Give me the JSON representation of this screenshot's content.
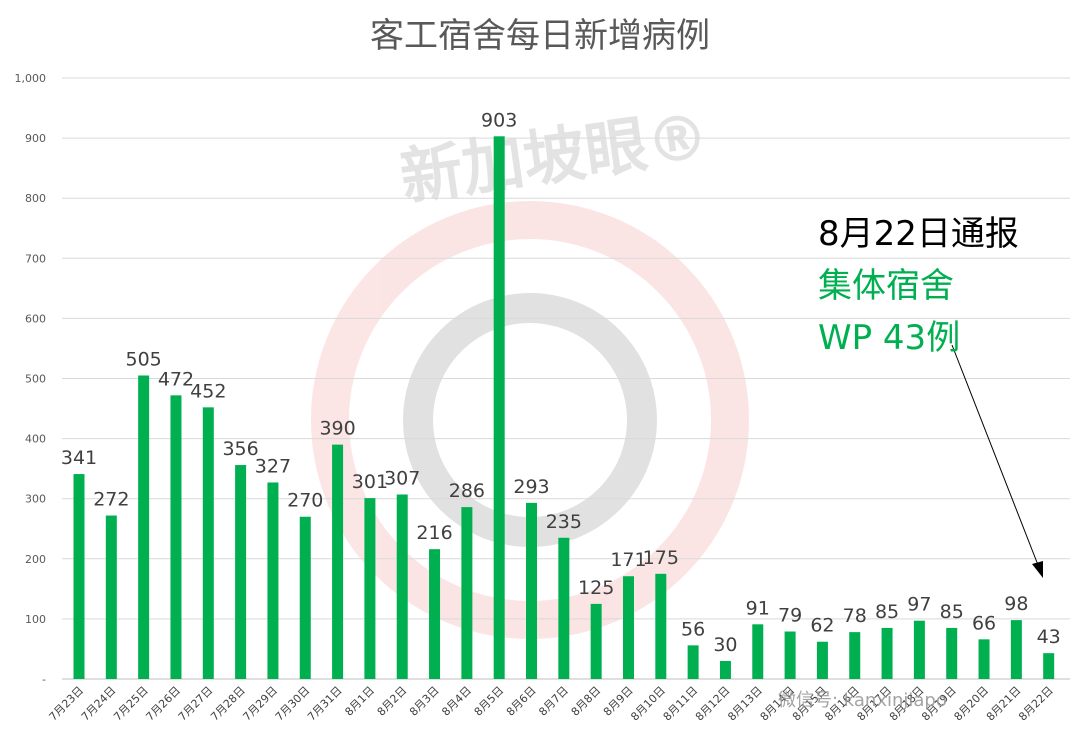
{
  "chart_data": {
    "type": "bar",
    "title": "客工宿舍每日新增病例",
    "xlabel": "",
    "ylabel": "",
    "ylim": [
      0,
      1000
    ],
    "yticks": [
      "-",
      "100",
      "200",
      "300",
      "400",
      "500",
      "600",
      "700",
      "800",
      "900",
      "1,000"
    ],
    "grid": true,
    "legend": "none",
    "categories": [
      "7月23日",
      "7月24日",
      "7月25日",
      "7月26日",
      "7月27日",
      "7月28日",
      "7月29日",
      "7月30日",
      "7月31日",
      "8月1日",
      "8月2日",
      "8月3日",
      "8月4日",
      "8月5日",
      "8月6日",
      "8月7日",
      "8月8日",
      "8月9日",
      "8月10日",
      "8月11日",
      "8月12日",
      "8月13日",
      "8月14日",
      "8月15日",
      "8月16日",
      "8月17日",
      "8月18日",
      "8月19日",
      "8月20日",
      "8月21日",
      "8月22日"
    ],
    "values": [
      341,
      272,
      505,
      472,
      452,
      356,
      327,
      270,
      390,
      301,
      307,
      216,
      286,
      903,
      293,
      235,
      125,
      171,
      175,
      56,
      30,
      91,
      79,
      62,
      78,
      85,
      97,
      85,
      66,
      98,
      43
    ],
    "bar_color": "#00b050",
    "annotation": {
      "line1": "8月22日通报",
      "line2": "集体宿舍",
      "line3": "WP 43例",
      "line1_color": "#000000",
      "line2_color": "#00b050",
      "line3_color": "#00b050"
    }
  },
  "watermark": {
    "logo_text": "新加坡眼®",
    "wechat_text": "微信号: kanxinjiapo"
  }
}
